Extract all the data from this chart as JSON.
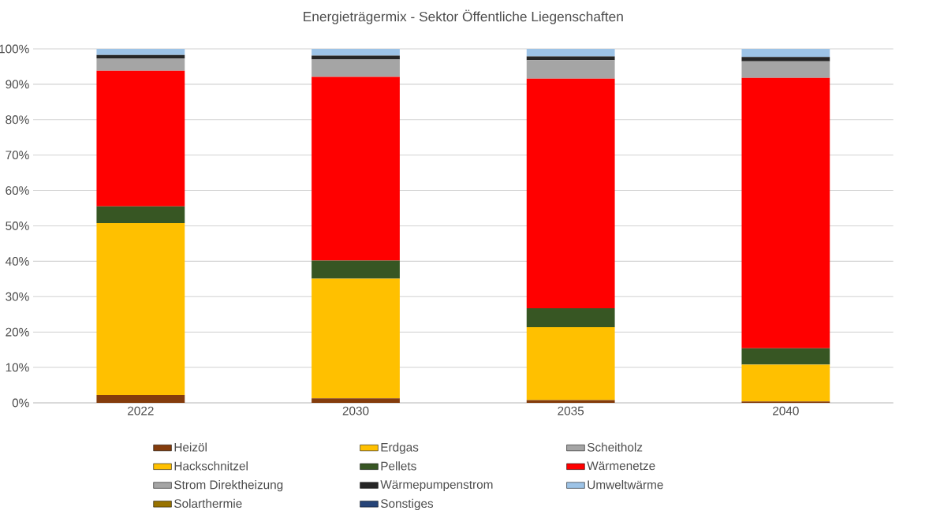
{
  "chart_data": {
    "type": "bar",
    "stacked": true,
    "title": "Energieträgermix - Sektor Öffentliche Liegenschaften",
    "categories": [
      "2022",
      "2030",
      "2035",
      "2040"
    ],
    "series": [
      {
        "name": "Heizöl",
        "color": "#843c0c",
        "values": [
          2.2,
          1.3,
          0.8,
          0.4
        ]
      },
      {
        "name": "Erdgas",
        "color": "#ffc000",
        "values": [
          0,
          0,
          0,
          0
        ]
      },
      {
        "name": "Scheitholz",
        "color": "#a5a5a5",
        "values": [
          0,
          0,
          0,
          0
        ]
      },
      {
        "name": "Hackschnitzel",
        "color": "#ffc000",
        "values": [
          48.6,
          33.8,
          20.6,
          10.4
        ]
      },
      {
        "name": "Pellets",
        "color": "#375623",
        "values": [
          4.7,
          5.1,
          5.3,
          4.6
        ]
      },
      {
        "name": "Wärmenetze",
        "color": "#ff0000",
        "values": [
          38.3,
          51.9,
          64.9,
          76.4
        ]
      },
      {
        "name": "Strom Direktheizung",
        "color": "#a5a5a5",
        "values": [
          3.5,
          4.9,
          5.2,
          4.7
        ]
      },
      {
        "name": "Wärmepumpenstrom",
        "color": "#262626",
        "values": [
          1.0,
          1.1,
          1.1,
          1.2
        ]
      },
      {
        "name": "Umweltwärme",
        "color": "#9dc3e6",
        "values": [
          1.7,
          1.9,
          2.1,
          2.3
        ]
      },
      {
        "name": "Solarthermie",
        "color": "#997300",
        "values": [
          0,
          0,
          0,
          0
        ]
      },
      {
        "name": "Sonstiges",
        "color": "#264478",
        "values": [
          0,
          0,
          0,
          0
        ]
      }
    ],
    "ylim": [
      0,
      100
    ],
    "yticks": [
      {
        "value": 0,
        "label": "0%"
      },
      {
        "value": 10,
        "label": "10%"
      },
      {
        "value": 20,
        "label": "20%"
      },
      {
        "value": 30,
        "label": "30%"
      },
      {
        "value": 40,
        "label": "40%"
      },
      {
        "value": 50,
        "label": "50%"
      },
      {
        "value": 60,
        "label": "60%"
      },
      {
        "value": 70,
        "label": "70%"
      },
      {
        "value": 80,
        "label": "80%"
      },
      {
        "value": 90,
        "label": "90%"
      },
      {
        "value": 100,
        "label": "100%"
      }
    ],
    "grid": "y",
    "legend": "bottom"
  }
}
